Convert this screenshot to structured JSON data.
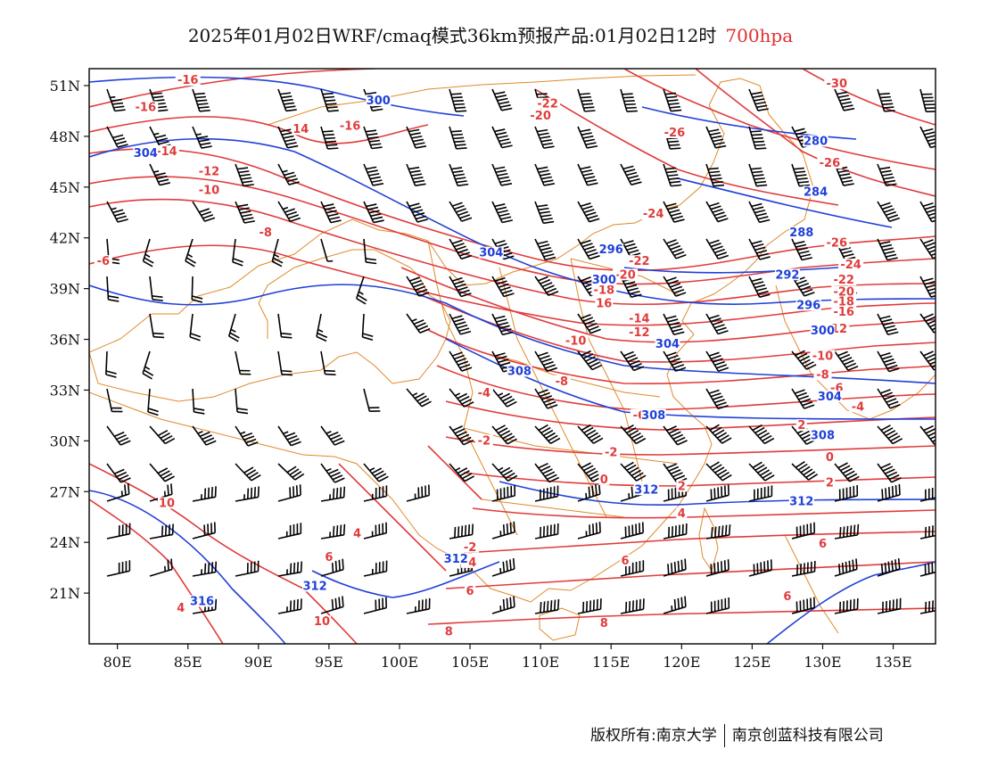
{
  "title": {
    "main": "2025年01月02日WRF/cmaq模式36km预报产品:01月02日12时",
    "level": "700hpa"
  },
  "colors": {
    "temperature": "#e03c3c",
    "height": "#2040d8",
    "border": "#e08a2a",
    "wind": "#000000"
  },
  "map": {
    "lon_range": [
      78,
      138
    ],
    "lat_range": [
      18,
      52
    ],
    "lon_ticks": [
      "80E",
      "85E",
      "90E",
      "95E",
      "100E",
      "105E",
      "110E",
      "115E",
      "120E",
      "125E",
      "130E",
      "135E"
    ],
    "lon_tick_values": [
      80,
      85,
      90,
      95,
      100,
      105,
      110,
      115,
      120,
      125,
      130,
      135
    ],
    "lat_ticks": [
      "21N",
      "24N",
      "27N",
      "30N",
      "33N",
      "36N",
      "39N",
      "42N",
      "45N",
      "48N",
      "51N"
    ],
    "lat_tick_values": [
      21,
      24,
      27,
      30,
      33,
      36,
      39,
      42,
      45,
      48,
      51
    ],
    "temperature_labels": [
      {
        "text": "-16",
        "lon": 85,
        "lat": 51.2
      },
      {
        "text": "-16",
        "lon": 82,
        "lat": 49.6
      },
      {
        "text": "-14",
        "lon": 83.5,
        "lat": 47.0
      },
      {
        "text": "-12",
        "lon": 86.5,
        "lat": 45.8
      },
      {
        "text": "-10",
        "lon": 86.5,
        "lat": 44.7
      },
      {
        "text": "-8",
        "lon": 90.5,
        "lat": 42.2
      },
      {
        "text": "-6",
        "lon": 79,
        "lat": 40.5
      },
      {
        "text": "14",
        "lon": 93,
        "lat": 48.3
      },
      {
        "text": "-16",
        "lon": 96.5,
        "lat": 48.5
      },
      {
        "text": "-22",
        "lon": 110.5,
        "lat": 49.8
      },
      {
        "text": "-20",
        "lon": 110,
        "lat": 49.1
      },
      {
        "text": "-26",
        "lon": 119.5,
        "lat": 48.1
      },
      {
        "text": "-26",
        "lon": 130.5,
        "lat": 46.3
      },
      {
        "text": "-30",
        "lon": 131,
        "lat": 51.0
      },
      {
        "text": "-24",
        "lon": 118,
        "lat": 43.3
      },
      {
        "text": "-26",
        "lon": 131,
        "lat": 41.6
      },
      {
        "text": "-22",
        "lon": 117,
        "lat": 40.5
      },
      {
        "text": "-20",
        "lon": 116,
        "lat": 39.7
      },
      {
        "text": "-24",
        "lon": 132,
        "lat": 40.3
      },
      {
        "text": "-22",
        "lon": 131.5,
        "lat": 39.4
      },
      {
        "text": "-20",
        "lon": 131.5,
        "lat": 38.7
      },
      {
        "text": "-18",
        "lon": 131.5,
        "lat": 38.1
      },
      {
        "text": "-18",
        "lon": 114.5,
        "lat": 38.8
      },
      {
        "text": "16",
        "lon": 114.5,
        "lat": 38.0
      },
      {
        "text": "-14",
        "lon": 117,
        "lat": 37.1
      },
      {
        "text": "-12",
        "lon": 117,
        "lat": 36.3
      },
      {
        "text": "-10",
        "lon": 112.5,
        "lat": 35.8
      },
      {
        "text": "-16",
        "lon": 131.5,
        "lat": 37.5
      },
      {
        "text": "-12",
        "lon": 131,
        "lat": 36.5
      },
      {
        "text": "-10",
        "lon": 130,
        "lat": 34.9
      },
      {
        "text": "-8",
        "lon": 130,
        "lat": 33.8
      },
      {
        "text": "-8",
        "lon": 111.5,
        "lat": 33.4
      },
      {
        "text": "-6",
        "lon": 131,
        "lat": 33.0
      },
      {
        "text": "-4",
        "lon": 132.5,
        "lat": 31.9
      },
      {
        "text": "-4",
        "lon": 106,
        "lat": 32.7
      },
      {
        "text": "-6",
        "lon": 117,
        "lat": 31.4
      },
      {
        "text": "-2",
        "lon": 106,
        "lat": 29.9
      },
      {
        "text": "-2",
        "lon": 115,
        "lat": 29.2
      },
      {
        "text": "2",
        "lon": 128.5,
        "lat": 30.8
      },
      {
        "text": "0",
        "lon": 130.5,
        "lat": 28.9
      },
      {
        "text": "0",
        "lon": 114.5,
        "lat": 27.6
      },
      {
        "text": "2",
        "lon": 120,
        "lat": 27.2
      },
      {
        "text": "2",
        "lon": 130.5,
        "lat": 27.4
      },
      {
        "text": "4",
        "lon": 120,
        "lat": 25.6
      },
      {
        "text": "4",
        "lon": 97,
        "lat": 24.4
      },
      {
        "text": "-2",
        "lon": 105,
        "lat": 23.6
      },
      {
        "text": "-4",
        "lon": 105,
        "lat": 22.7
      },
      {
        "text": "6",
        "lon": 95,
        "lat": 23.0
      },
      {
        "text": "6",
        "lon": 116,
        "lat": 22.8
      },
      {
        "text": "6",
        "lon": 130,
        "lat": 23.8
      },
      {
        "text": "6",
        "lon": 105,
        "lat": 21.0
      },
      {
        "text": "6",
        "lon": 127.5,
        "lat": 20.7
      },
      {
        "text": "8",
        "lon": 114.5,
        "lat": 19.1
      },
      {
        "text": "8",
        "lon": 103.5,
        "lat": 18.6
      },
      {
        "text": "10",
        "lon": 83.5,
        "lat": 26.2
      },
      {
        "text": "10",
        "lon": 94.5,
        "lat": 19.2
      },
      {
        "text": "4",
        "lon": 84.5,
        "lat": 20.0
      }
    ],
    "height_labels": [
      {
        "text": "300",
        "lon": 98.5,
        "lat": 50.0
      },
      {
        "text": "304",
        "lon": 82,
        "lat": 46.9
      },
      {
        "text": "280",
        "lon": 129.5,
        "lat": 47.6
      },
      {
        "text": "284",
        "lon": 129.5,
        "lat": 44.6
      },
      {
        "text": "288",
        "lon": 128.5,
        "lat": 42.2
      },
      {
        "text": "292",
        "lon": 127.5,
        "lat": 39.7
      },
      {
        "text": "296",
        "lon": 115,
        "lat": 41.2
      },
      {
        "text": "300",
        "lon": 114.5,
        "lat": 39.4
      },
      {
        "text": "296",
        "lon": 129,
        "lat": 37.9
      },
      {
        "text": "304",
        "lon": 106.5,
        "lat": 41.0
      },
      {
        "text": "304",
        "lon": 119,
        "lat": 35.6
      },
      {
        "text": "300",
        "lon": 130,
        "lat": 36.4
      },
      {
        "text": "308",
        "lon": 108.5,
        "lat": 34.0
      },
      {
        "text": "304",
        "lon": 130.5,
        "lat": 32.5
      },
      {
        "text": "308",
        "lon": 118,
        "lat": 31.4
      },
      {
        "text": "308",
        "lon": 130,
        "lat": 30.2
      },
      {
        "text": "312",
        "lon": 117.5,
        "lat": 27.0
      },
      {
        "text": "312",
        "lon": 128.5,
        "lat": 26.3
      },
      {
        "text": "312",
        "lon": 104,
        "lat": 22.9
      },
      {
        "text": "312",
        "lon": 94,
        "lat": 21.3
      },
      {
        "text": "316",
        "lon": 86,
        "lat": 20.4
      }
    ]
  },
  "footer": {
    "left": "版权所有:南京大学",
    "right": "南京创蓝科技有限公司"
  }
}
